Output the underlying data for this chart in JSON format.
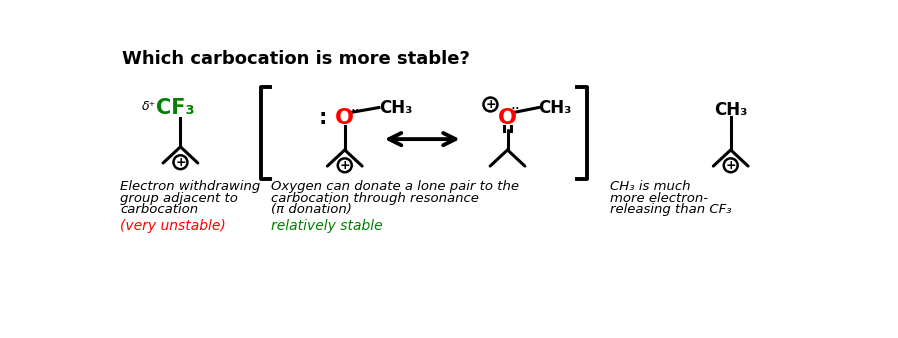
{
  "title": "Which carbocation is more stable?",
  "title_fontsize": 13,
  "bg_color": "#ffffff",
  "section1": {
    "delta_plus": "δ⁺",
    "cf3_label": "CF₃",
    "cf3_color": "#008000",
    "desc_line1": "Electron withdrawing",
    "desc_line2": "group adjacent to",
    "desc_line3": "carbocation",
    "stability": "(very unstable)",
    "stability_color": "#ff0000"
  },
  "section2": {
    "O_color": "#ff0000",
    "ch3_label": "CH₃",
    "desc_line1": "Oxygen can donate a lone pair to the",
    "desc_line2": "carbocation through resonance",
    "desc_line3": "(π donation)",
    "stability": "relatively stable",
    "stability_color": "#008000"
  },
  "section3": {
    "ch3_label": "CH₃",
    "desc_line1": "CH₃ is much",
    "desc_line2": "more electron-",
    "desc_line3": "releasing than CF₃"
  }
}
